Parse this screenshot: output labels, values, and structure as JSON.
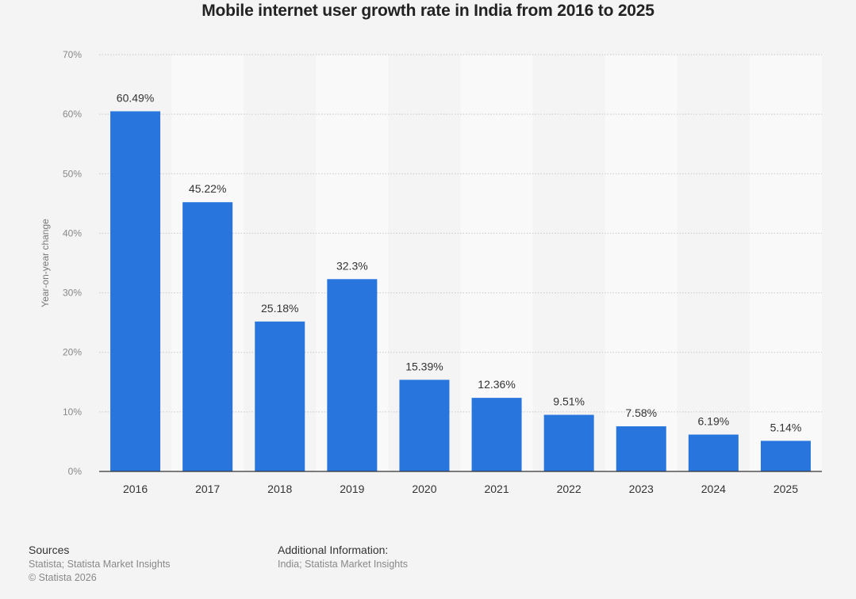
{
  "chart_data": {
    "type": "bar",
    "title": "Mobile internet user growth rate in India from 2016 to 2025",
    "xlabel": "",
    "ylabel": "Year-on-year change",
    "categories": [
      "2016",
      "2017",
      "2018",
      "2019",
      "2020",
      "2021",
      "2022",
      "2023",
      "2024",
      "2025"
    ],
    "values": [
      60.49,
      45.22,
      25.18,
      32.3,
      15.39,
      12.36,
      9.51,
      7.58,
      6.19,
      5.14
    ],
    "value_labels": [
      "60.49%",
      "45.22%",
      "25.18%",
      "32.3%",
      "15.39%",
      "12.36%",
      "9.51%",
      "7.58%",
      "6.19%",
      "5.14%"
    ],
    "ylim": [
      0,
      70
    ],
    "yticks": [
      0,
      10,
      20,
      30,
      40,
      50,
      60,
      70
    ],
    "ytick_labels": [
      "0%",
      "10%",
      "20%",
      "30%",
      "40%",
      "50%",
      "60%",
      "70%"
    ],
    "grid": true,
    "bar_color": "#2876dd"
  },
  "footer": {
    "sources_heading": "Sources",
    "sources_line1": "Statista; Statista Market Insights",
    "sources_line2": "© Statista 2026",
    "additional_heading": "Additional Information:",
    "additional_line1": "India; Statista Market Insights"
  }
}
